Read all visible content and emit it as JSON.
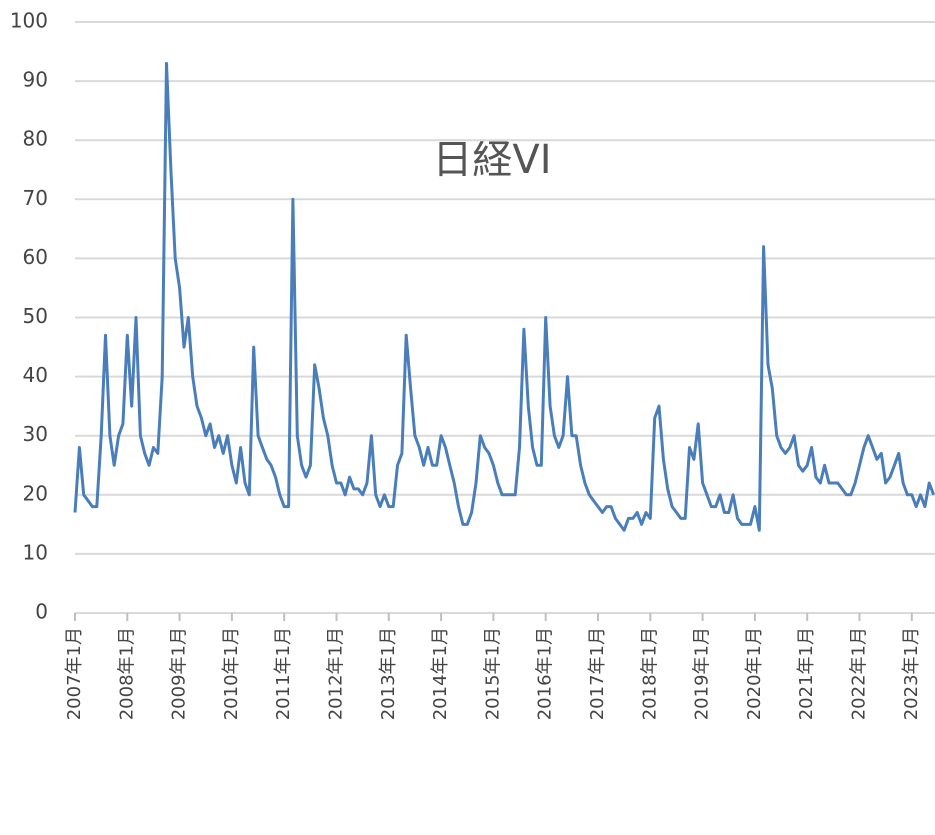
{
  "chart_data": {
    "type": "line",
    "title": "日経VI",
    "color": "#4a7ebb",
    "categories": [
      "2007年1月",
      null,
      null,
      null,
      null,
      null,
      null,
      null,
      null,
      null,
      null,
      null,
      "2008年1月",
      null,
      null,
      null,
      null,
      null,
      null,
      null,
      null,
      null,
      null,
      null,
      "2009年1月",
      null,
      null,
      null,
      null,
      null,
      null,
      null,
      null,
      null,
      null,
      null,
      "2010年1月",
      null,
      null,
      null,
      null,
      null,
      null,
      null,
      null,
      null,
      null,
      null,
      "2011年1月",
      null,
      null,
      null,
      null,
      null,
      null,
      null,
      null,
      null,
      null,
      null,
      "2012年1月",
      null,
      null,
      null,
      null,
      null,
      null,
      null,
      null,
      null,
      null,
      null,
      "2013年1月",
      null,
      null,
      null,
      null,
      null,
      null,
      null,
      null,
      null,
      null,
      null,
      "2014年1月",
      null,
      null,
      null,
      null,
      null,
      null,
      null,
      null,
      null,
      null,
      null,
      "2015年1月",
      null,
      null,
      null,
      null,
      null,
      null,
      null,
      null,
      null,
      null,
      null,
      "2016年1月",
      null,
      null,
      null,
      null,
      null,
      null,
      null,
      null,
      null,
      null,
      null,
      "2017年1月",
      null,
      null,
      null,
      null,
      null,
      null,
      null,
      null,
      null,
      null,
      null,
      "2018年1月",
      null,
      null,
      null,
      null,
      null,
      null,
      null,
      null,
      null,
      null,
      null,
      "2019年1月",
      null,
      null,
      null,
      null,
      null,
      null,
      null,
      null,
      null,
      null,
      null,
      "2020年1月",
      null,
      null,
      null,
      null,
      null,
      null,
      null,
      null,
      null,
      null,
      null,
      "2021年1月",
      null,
      null,
      null,
      null,
      null,
      null,
      null,
      null,
      null,
      null,
      null,
      "2022年1月",
      null,
      null,
      null,
      null,
      null,
      null,
      null,
      null,
      null,
      null,
      null,
      "2023年1月",
      null,
      null,
      null,
      null,
      null
    ],
    "values": [
      17,
      28,
      20,
      19,
      18,
      18,
      30,
      47,
      30,
      25,
      30,
      32,
      47,
      35,
      50,
      30,
      27,
      25,
      28,
      27,
      40,
      93,
      75,
      60,
      55,
      45,
      50,
      40,
      35,
      33,
      30,
      32,
      28,
      30,
      27,
      30,
      25,
      22,
      28,
      22,
      20,
      45,
      30,
      28,
      26,
      25,
      23,
      20,
      18,
      18,
      70,
      30,
      25,
      23,
      25,
      42,
      38,
      33,
      30,
      25,
      22,
      22,
      20,
      23,
      21,
      21,
      20,
      22,
      30,
      20,
      18,
      20,
      18,
      18,
      25,
      27,
      47,
      38,
      30,
      28,
      25,
      28,
      25,
      25,
      30,
      28,
      25,
      22,
      18,
      15,
      15,
      17,
      22,
      30,
      28,
      27,
      25,
      22,
      20,
      20,
      20,
      20,
      28,
      48,
      35,
      28,
      25,
      25,
      50,
      35,
      30,
      28,
      30,
      40,
      30,
      30,
      25,
      22,
      20,
      19,
      18,
      17,
      18,
      18,
      16,
      15,
      14,
      16,
      16,
      17,
      15,
      17,
      16,
      33,
      35,
      26,
      21,
      18,
      17,
      16,
      16,
      28,
      26,
      32,
      22,
      20,
      18,
      18,
      20,
      17,
      17,
      20,
      16,
      15,
      15,
      15,
      18,
      14,
      62,
      42,
      38,
      30,
      28,
      27,
      28,
      30,
      25,
      24,
      25,
      28,
      23,
      22,
      25,
      22,
      22,
      22,
      21,
      20,
      20,
      22,
      25,
      28,
      30,
      28,
      26,
      27,
      22,
      23,
      25,
      27,
      22,
      20,
      20,
      18,
      20,
      18,
      22,
      20
    ],
    "ylim": [
      0,
      100
    ],
    "yticks": [
      0,
      10,
      20,
      30,
      40,
      50,
      60,
      70,
      80,
      90,
      100
    ],
    "grid": true
  }
}
